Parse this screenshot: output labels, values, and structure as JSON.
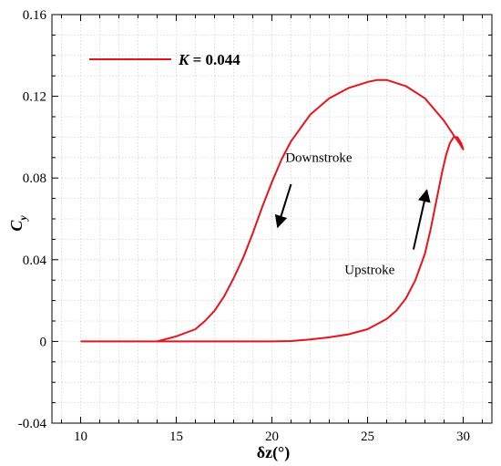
{
  "chart_data": {
    "type": "line",
    "title": "",
    "xlabel": "δz(°)",
    "ylabel_main": "C",
    "ylabel_sub": "y",
    "xlim": [
      8.5,
      31.5
    ],
    "ylim": [
      -0.04,
      0.16
    ],
    "xticks": [
      10,
      15,
      20,
      25,
      30
    ],
    "yticks": [
      -0.04,
      0,
      0.04,
      0.08,
      0.12,
      0.16
    ],
    "xtick_labels": [
      "10",
      "15",
      "20",
      "25",
      "30"
    ],
    "ytick_labels": [
      "-0.04",
      "0",
      "0.04",
      "0.08",
      "0.12",
      "0.16"
    ],
    "grid": true,
    "legend_position": "top-left",
    "series": [
      {
        "name_prefix": "K",
        "name_value": " = 0.044",
        "color": "#e8141c",
        "upstroke": {
          "x": [
            10,
            12,
            14,
            16,
            18,
            20,
            21,
            22,
            23,
            24,
            25,
            26,
            26.5,
            27,
            27.5,
            28,
            28.3,
            28.6,
            28.9,
            29.1,
            29.3,
            29.5,
            29.7,
            29.9,
            30
          ],
          "y": [
            0,
            0,
            0,
            0,
            0,
            0,
            0.0002,
            0.001,
            0.002,
            0.0035,
            0.006,
            0.011,
            0.015,
            0.021,
            0.03,
            0.043,
            0.055,
            0.069,
            0.083,
            0.091,
            0.097,
            0.1,
            0.1,
            0.097,
            0.094
          ]
        },
        "downstroke": {
          "x": [
            30,
            29.8,
            29.5,
            29,
            28,
            27,
            26,
            25.5,
            25,
            24,
            23,
            22,
            21,
            20.5,
            20,
            19.5,
            19,
            18.5,
            18,
            17.5,
            17,
            16.5,
            16,
            15,
            14,
            13,
            12,
            11,
            10
          ],
          "y": [
            0.094,
            0.097,
            0.101,
            0.108,
            0.119,
            0.125,
            0.128,
            0.128,
            0.127,
            0.124,
            0.119,
            0.111,
            0.098,
            0.089,
            0.078,
            0.066,
            0.053,
            0.041,
            0.031,
            0.022,
            0.015,
            0.01,
            0.006,
            0.0025,
            0,
            0,
            0,
            0,
            0
          ]
        }
      }
    ],
    "annotations": [
      {
        "text": "Downstroke",
        "x": 20.7,
        "y": 0.088,
        "arrow_from": [
          21,
          0.077
        ],
        "arrow_to": [
          20.3,
          0.056
        ]
      },
      {
        "text": "Upstroke",
        "x": 23.8,
        "y": 0.033,
        "arrow_from": [
          27.4,
          0.045
        ],
        "arrow_to": [
          28.1,
          0.074
        ]
      }
    ]
  }
}
